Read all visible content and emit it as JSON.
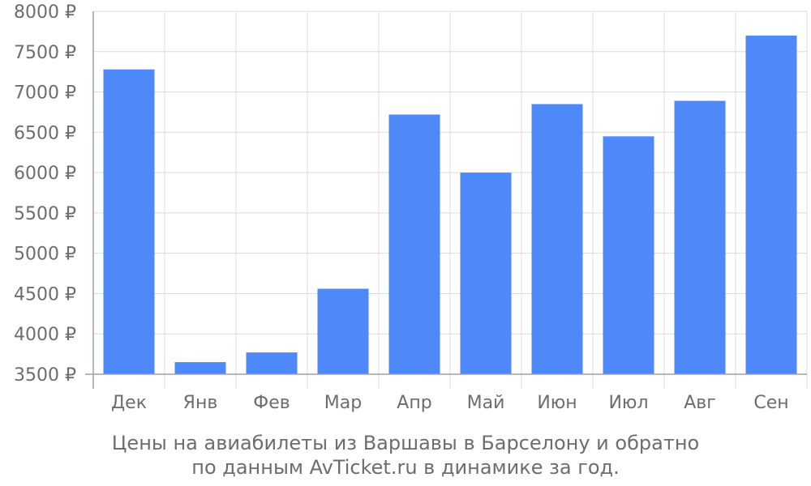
{
  "chart_data": {
    "type": "bar",
    "categories": [
      "Дек",
      "Янв",
      "Фев",
      "Мар",
      "Апр",
      "Май",
      "Июн",
      "Июл",
      "Авг",
      "Сен"
    ],
    "values": [
      7280,
      3650,
      3770,
      4560,
      6720,
      6000,
      6850,
      6450,
      6890,
      7700
    ],
    "yticks": [
      "3500 ₽",
      "4000 ₽",
      "4500 ₽",
      "5000 ₽",
      "5500 ₽",
      "6000 ₽",
      "6500 ₽",
      "7000 ₽",
      "7500 ₽",
      "8000 ₽"
    ],
    "ylim": [
      3500,
      8000
    ],
    "unit": "₽",
    "grid": true,
    "bar_color": "#4d89f9",
    "caption_line1": "Цены на авиабилеты из Варшавы в Барселону и обратно",
    "caption_line2": "по данным AvTicket.ru в динамике за год."
  }
}
